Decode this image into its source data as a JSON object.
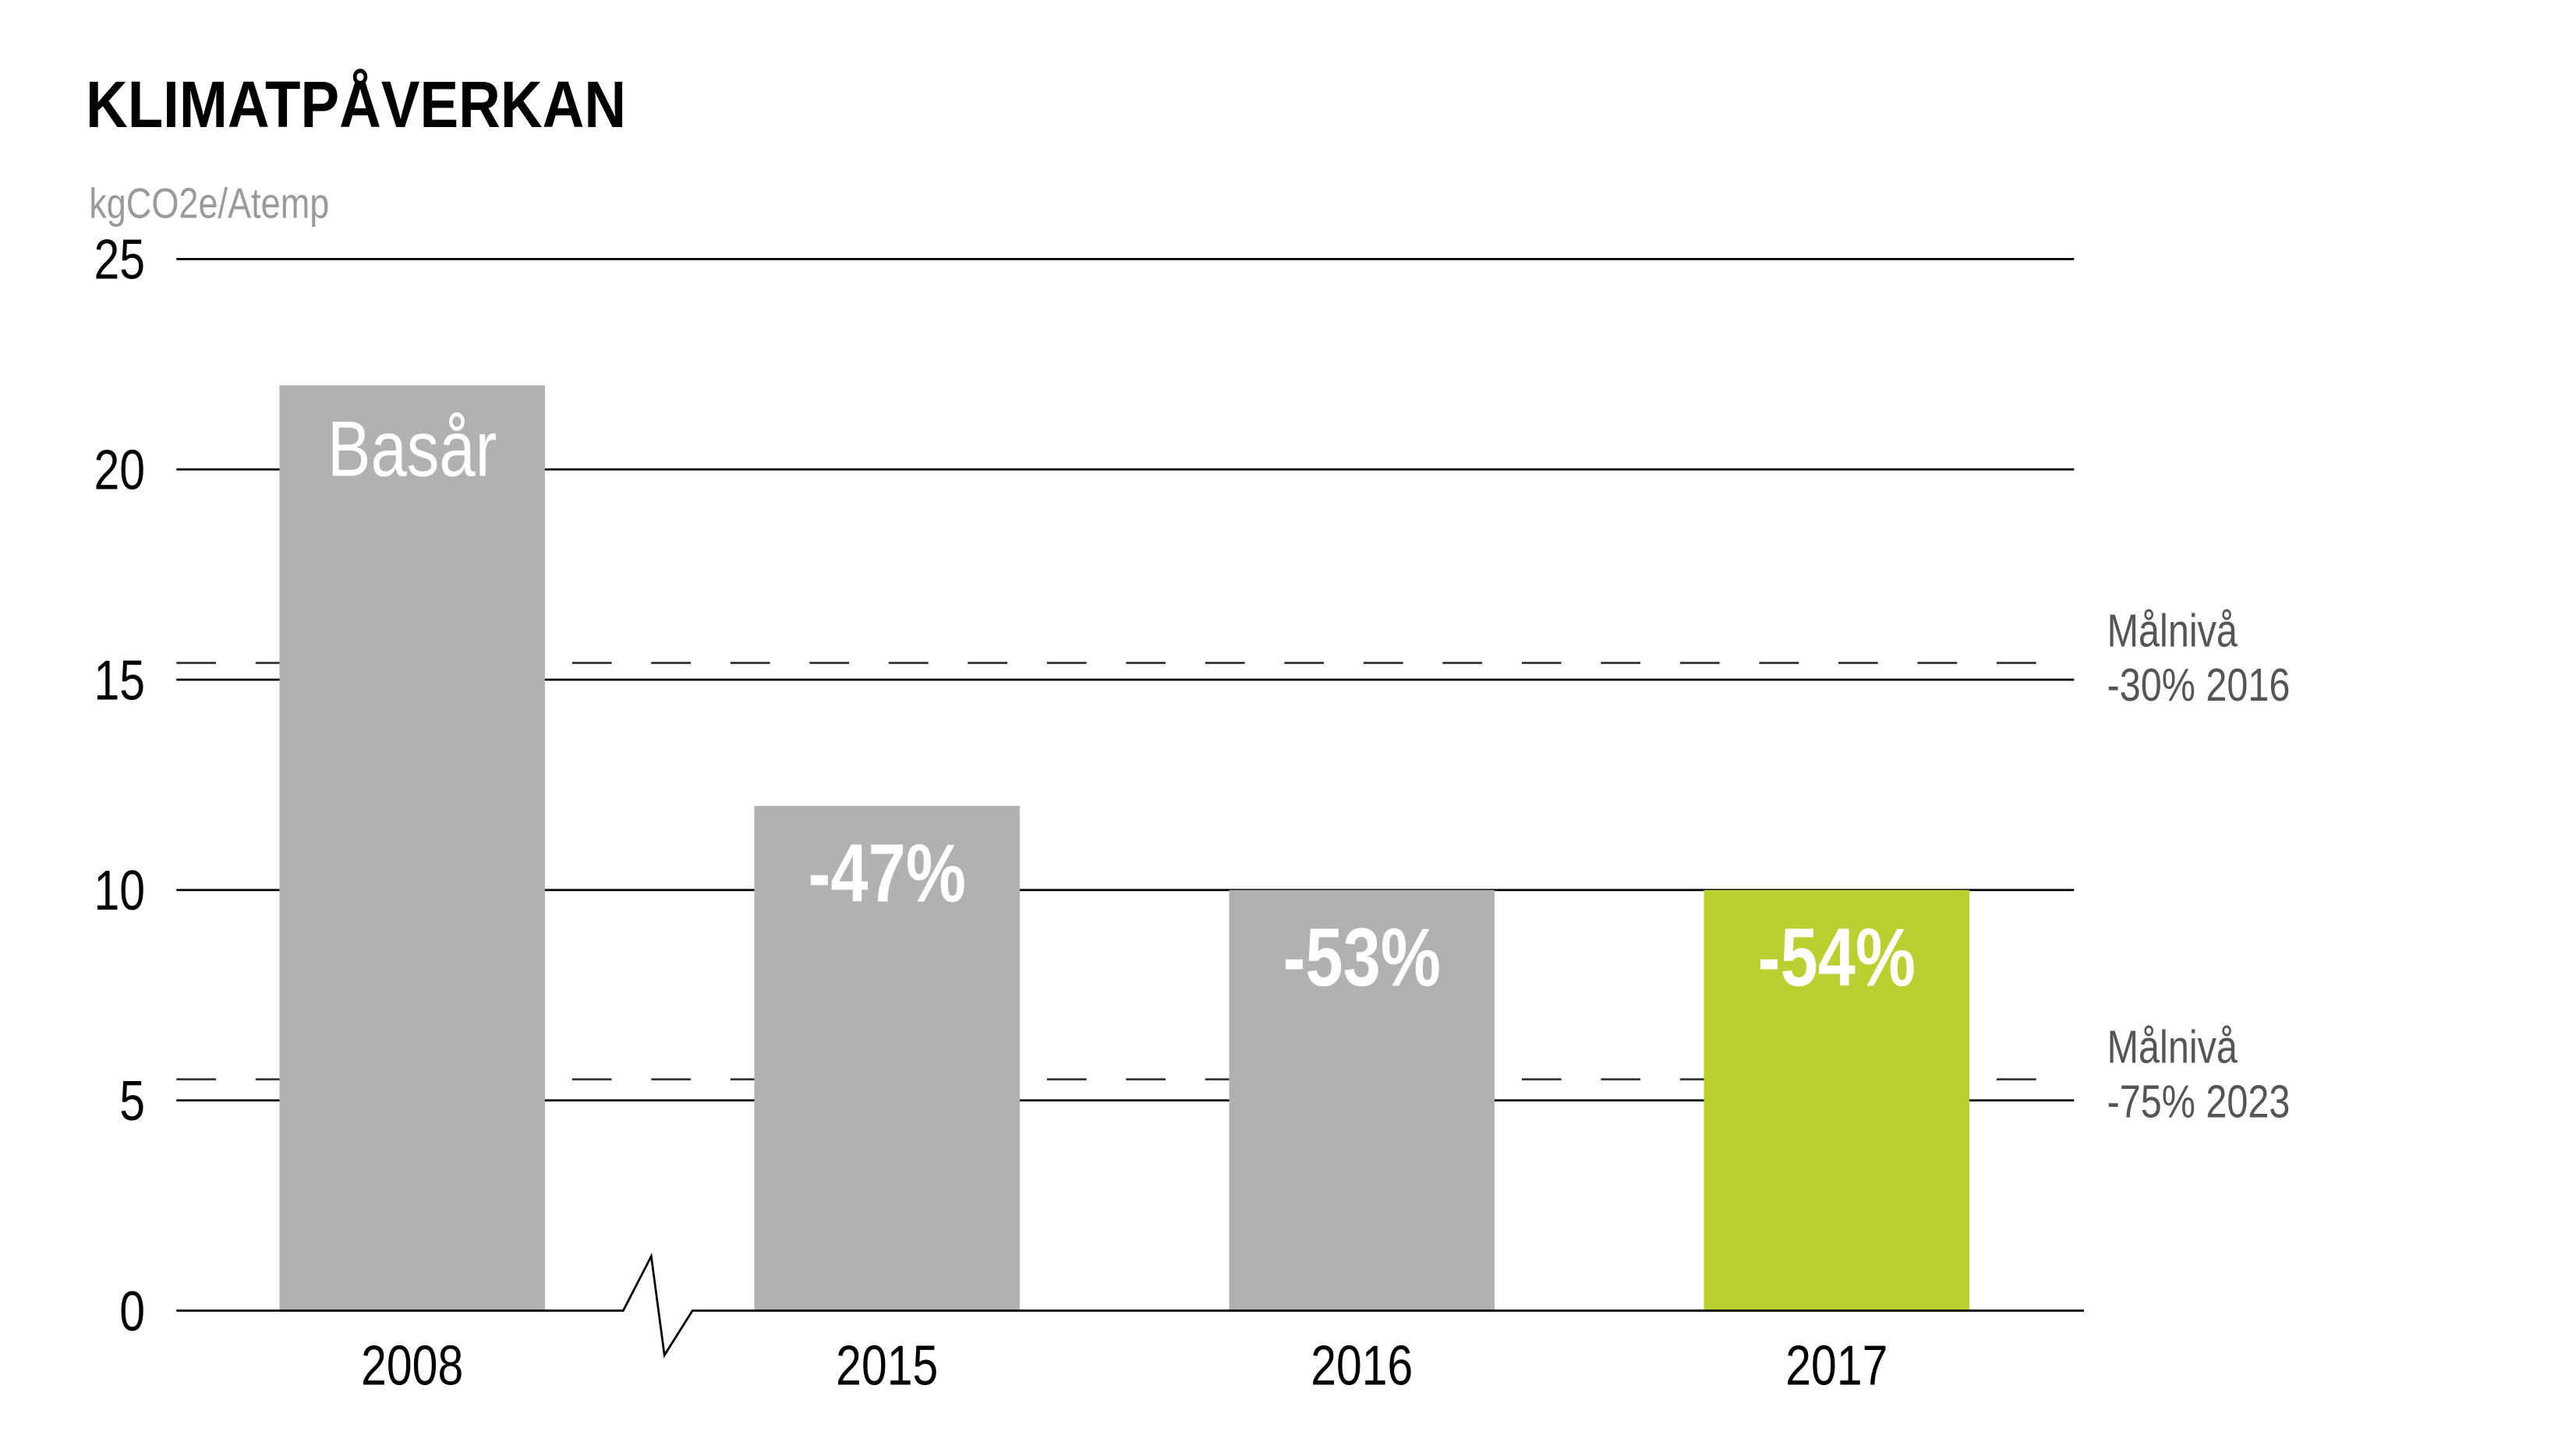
{
  "chart_data": {
    "type": "bar",
    "title": "KLIMATPÅVERKAN",
    "ylabel": "kgCO2e/Atemp",
    "xlabel": "",
    "ylim": [
      0,
      25
    ],
    "yticks": [
      "0",
      "5",
      "10",
      "15",
      "20",
      "25"
    ],
    "ytick_values": [
      0,
      5,
      10,
      15,
      20,
      25
    ],
    "grid": true,
    "axis_break": "between 2008 and 2015",
    "categories": [
      "2008",
      "2015",
      "2016",
      "2017"
    ],
    "values": [
      22,
      12,
      10,
      10
    ],
    "bar_labels": [
      "Basår",
      "-47%",
      "-53%",
      "-54%"
    ],
    "bar_colors": [
      "#b1b1b1",
      "#b1b1b1",
      "#b1b1b1",
      "#bbcf31"
    ],
    "reference_lines": [
      {
        "value": 15.4,
        "label_line1": "Målnivå",
        "label_line2": "-30% 2016",
        "style": "dashed"
      },
      {
        "value": 5.5,
        "label_line1": "Målnivå",
        "label_line2": "-75% 2023",
        "style": "dashed"
      }
    ]
  }
}
